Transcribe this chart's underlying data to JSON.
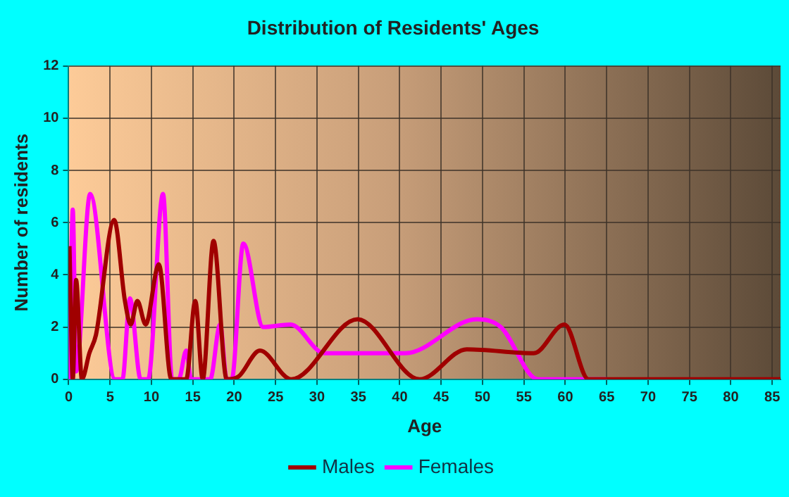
{
  "chart_data": {
    "type": "line",
    "title": "Distribution of Residents' Ages",
    "xlabel": "Age",
    "ylabel": "Number of residents",
    "xlim": [
      0,
      86
    ],
    "xticks": [
      0,
      5,
      10,
      15,
      20,
      25,
      30,
      35,
      40,
      45,
      50,
      55,
      60,
      65,
      70,
      75,
      80,
      85
    ],
    "ylim": [
      0,
      12
    ],
    "yticks": [
      0,
      2,
      4,
      6,
      8,
      10,
      12
    ],
    "grid": true,
    "legend": "bottom",
    "series": [
      {
        "name": "Males",
        "color": "#a00000",
        "x": [
          0.1,
          0.5,
          0.9,
          1.6,
          2.5,
          3.3,
          5.5,
          6.8,
          7.5,
          8.3,
          9.3,
          10.9,
          12.4,
          14.2,
          15.3,
          16.2,
          17.5,
          19.1,
          20.5,
          23.1,
          26.9,
          34.9,
          42.4,
          48.1,
          56.2,
          59.9,
          62.8,
          86
        ],
        "values": [
          5.1,
          0,
          3.8,
          0,
          1,
          1.7,
          6.1,
          3,
          2.1,
          3,
          2.1,
          4.4,
          0,
          0,
          3,
          0,
          5.3,
          0,
          0.1,
          1.1,
          0,
          2.3,
          0,
          1.15,
          1,
          2.1,
          0,
          0
        ]
      },
      {
        "name": "Females",
        "color": "#ff00ff",
        "x": [
          0.1,
          0.5,
          0.9,
          2.6,
          5.6,
          6.5,
          7.4,
          8.7,
          9.6,
          11.4,
          12.5,
          13.3,
          14.2,
          14.8,
          17.1,
          18.3,
          19.1,
          19.7,
          21.1,
          23.5,
          26.8,
          30.9,
          40.7,
          49.3,
          52.2,
          56.7,
          65
        ],
        "values": [
          0,
          6.5,
          0.3,
          7.1,
          0,
          0,
          3.1,
          0,
          0,
          7.1,
          0,
          0,
          1.1,
          0,
          0,
          2.1,
          0,
          0,
          5.2,
          2,
          2.1,
          1,
          1,
          2.3,
          2,
          0,
          0
        ]
      }
    ]
  }
}
